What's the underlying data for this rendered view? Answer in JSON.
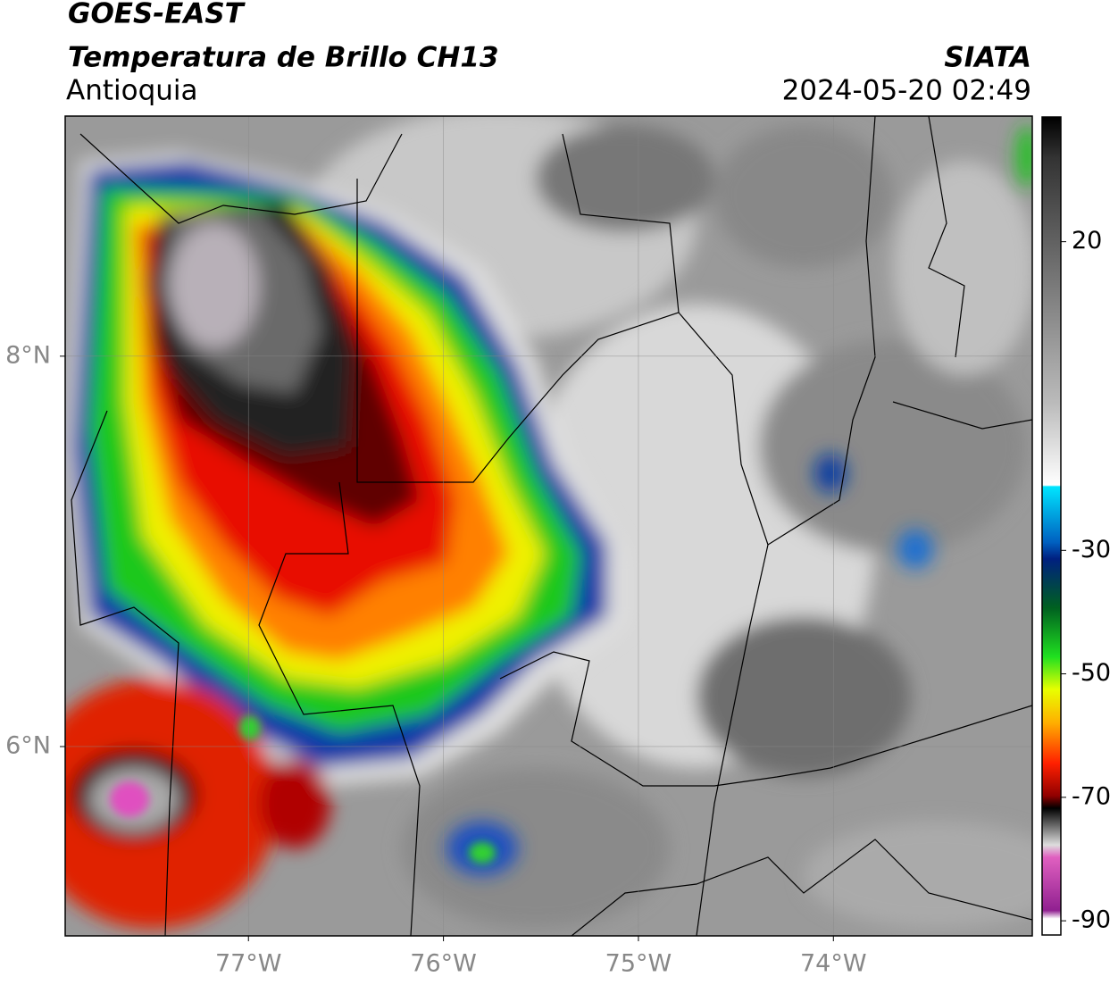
{
  "header": {
    "title": "GOES-EAST",
    "subtitle": "Temperatura de Brillo CH13",
    "region": "Antioquia",
    "source": "SIATA",
    "datetime": "2024-05-20 02:49"
  },
  "map": {
    "xlim": [
      -77.94,
      -72.98
    ],
    "ylim": [
      5.03,
      9.23
    ],
    "xticks": [
      {
        "value": -77,
        "label": "77°W"
      },
      {
        "value": -76,
        "label": "76°W"
      },
      {
        "value": -75,
        "label": "75°W"
      },
      {
        "value": -74,
        "label": "74°W"
      }
    ],
    "yticks": [
      {
        "value": 6,
        "label": "6°N"
      },
      {
        "value": 8,
        "label": "8°N"
      }
    ],
    "grid": true
  },
  "colorbar": {
    "lim": [
      -92.3,
      40.2
    ],
    "ticks": [
      20,
      -30,
      -50,
      -70,
      -90
    ]
  }
}
